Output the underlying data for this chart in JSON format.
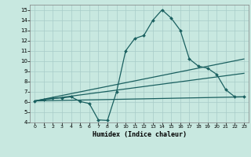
{
  "xlabel": "Humidex (Indice chaleur)",
  "xlim": [
    -0.5,
    23.5
  ],
  "ylim": [
    4,
    15.5
  ],
  "xticks": [
    0,
    1,
    2,
    3,
    4,
    5,
    6,
    7,
    8,
    9,
    10,
    11,
    12,
    13,
    14,
    15,
    16,
    17,
    18,
    19,
    20,
    21,
    22,
    23
  ],
  "yticks": [
    4,
    5,
    6,
    7,
    8,
    9,
    10,
    11,
    12,
    13,
    14,
    15
  ],
  "bg_color": "#c8e8e0",
  "line_color": "#1a6060",
  "grid_color": "#a8ccc8",
  "curve1_x": [
    0,
    1,
    2,
    3,
    4,
    5,
    6,
    7,
    8,
    9,
    10,
    11,
    12,
    13,
    14,
    15,
    16,
    17,
    18,
    19,
    20,
    21,
    22,
    23
  ],
  "curve1_y": [
    6.1,
    6.25,
    6.35,
    6.4,
    6.5,
    6.05,
    5.85,
    4.25,
    4.2,
    7.0,
    11.0,
    12.2,
    12.5,
    14.0,
    15.0,
    14.2,
    13.0,
    10.2,
    9.5,
    9.3,
    8.7,
    7.2,
    6.5,
    6.5
  ],
  "line1_x": [
    0,
    23
  ],
  "line1_y": [
    6.1,
    6.5
  ],
  "line2_x": [
    0,
    23
  ],
  "line2_y": [
    6.1,
    8.8
  ],
  "line3_x": [
    0,
    23
  ],
  "line3_y": [
    6.1,
    10.2
  ]
}
